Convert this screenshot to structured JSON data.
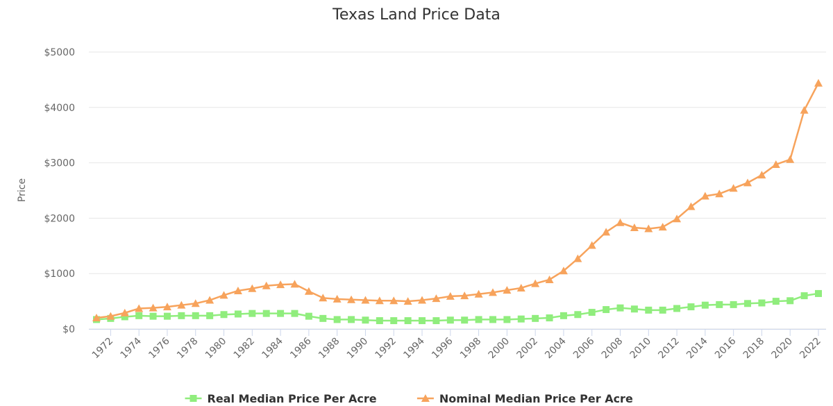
{
  "chart_data": {
    "type": "line",
    "title": "Texas Land Price Data",
    "y_label": "Price",
    "x": [
      1971,
      1972,
      1973,
      1974,
      1975,
      1976,
      1977,
      1978,
      1979,
      1980,
      1981,
      1982,
      1983,
      1984,
      1985,
      1986,
      1987,
      1988,
      1989,
      1990,
      1991,
      1992,
      1993,
      1994,
      1995,
      1996,
      1997,
      1998,
      1999,
      2000,
      2001,
      2002,
      2003,
      2004,
      2005,
      2006,
      2007,
      2008,
      2009,
      2010,
      2011,
      2012,
      2013,
      2014,
      2015,
      2016,
      2017,
      2018,
      2019,
      2020,
      2021,
      2022
    ],
    "xlim": [
      1971,
      2022
    ],
    "xticks": [
      1972,
      1974,
      1976,
      1978,
      1980,
      1982,
      1984,
      1986,
      1988,
      1990,
      1992,
      1994,
      1996,
      1998,
      2000,
      2002,
      2004,
      2006,
      2008,
      2010,
      2012,
      2014,
      2016,
      2018,
      2020,
      2022
    ],
    "ylim": [
      0,
      5000
    ],
    "yticks": [
      {
        "value": 0,
        "label": "$0"
      },
      {
        "value": 1000,
        "label": "$1000"
      },
      {
        "value": 2000,
        "label": "$2000"
      },
      {
        "value": 3000,
        "label": "$3000"
      },
      {
        "value": 4000,
        "label": "$4000"
      },
      {
        "value": 5000,
        "label": "$5000"
      }
    ],
    "grid": true,
    "legend": "bottom",
    "series": [
      {
        "name": "Real Median Price Per Acre",
        "color": "#90ed7d",
        "marker": "square",
        "values": [
          170,
          190,
          220,
          240,
          230,
          230,
          240,
          240,
          240,
          260,
          270,
          280,
          280,
          280,
          280,
          230,
          190,
          170,
          170,
          160,
          150,
          150,
          150,
          150,
          150,
          160,
          160,
          170,
          170,
          170,
          180,
          190,
          200,
          240,
          260,
          300,
          350,
          380,
          360,
          340,
          340,
          370,
          400,
          430,
          440,
          440,
          460,
          470,
          500,
          510,
          600,
          640
        ]
      },
      {
        "name": "Nominal Median Price Per Acre",
        "color": "#f7a35c",
        "marker": "triangle",
        "values": [
          200,
          230,
          290,
          370,
          380,
          400,
          430,
          460,
          520,
          610,
          690,
          730,
          780,
          800,
          810,
          680,
          560,
          540,
          530,
          520,
          510,
          510,
          500,
          520,
          550,
          590,
          600,
          630,
          660,
          700,
          740,
          820,
          890,
          1050,
          1270,
          1510,
          1750,
          1920,
          1830,
          1810,
          1840,
          1990,
          2210,
          2400,
          2440,
          2540,
          2640,
          2780,
          2970,
          3060,
          3950,
          4440
        ]
      }
    ]
  }
}
